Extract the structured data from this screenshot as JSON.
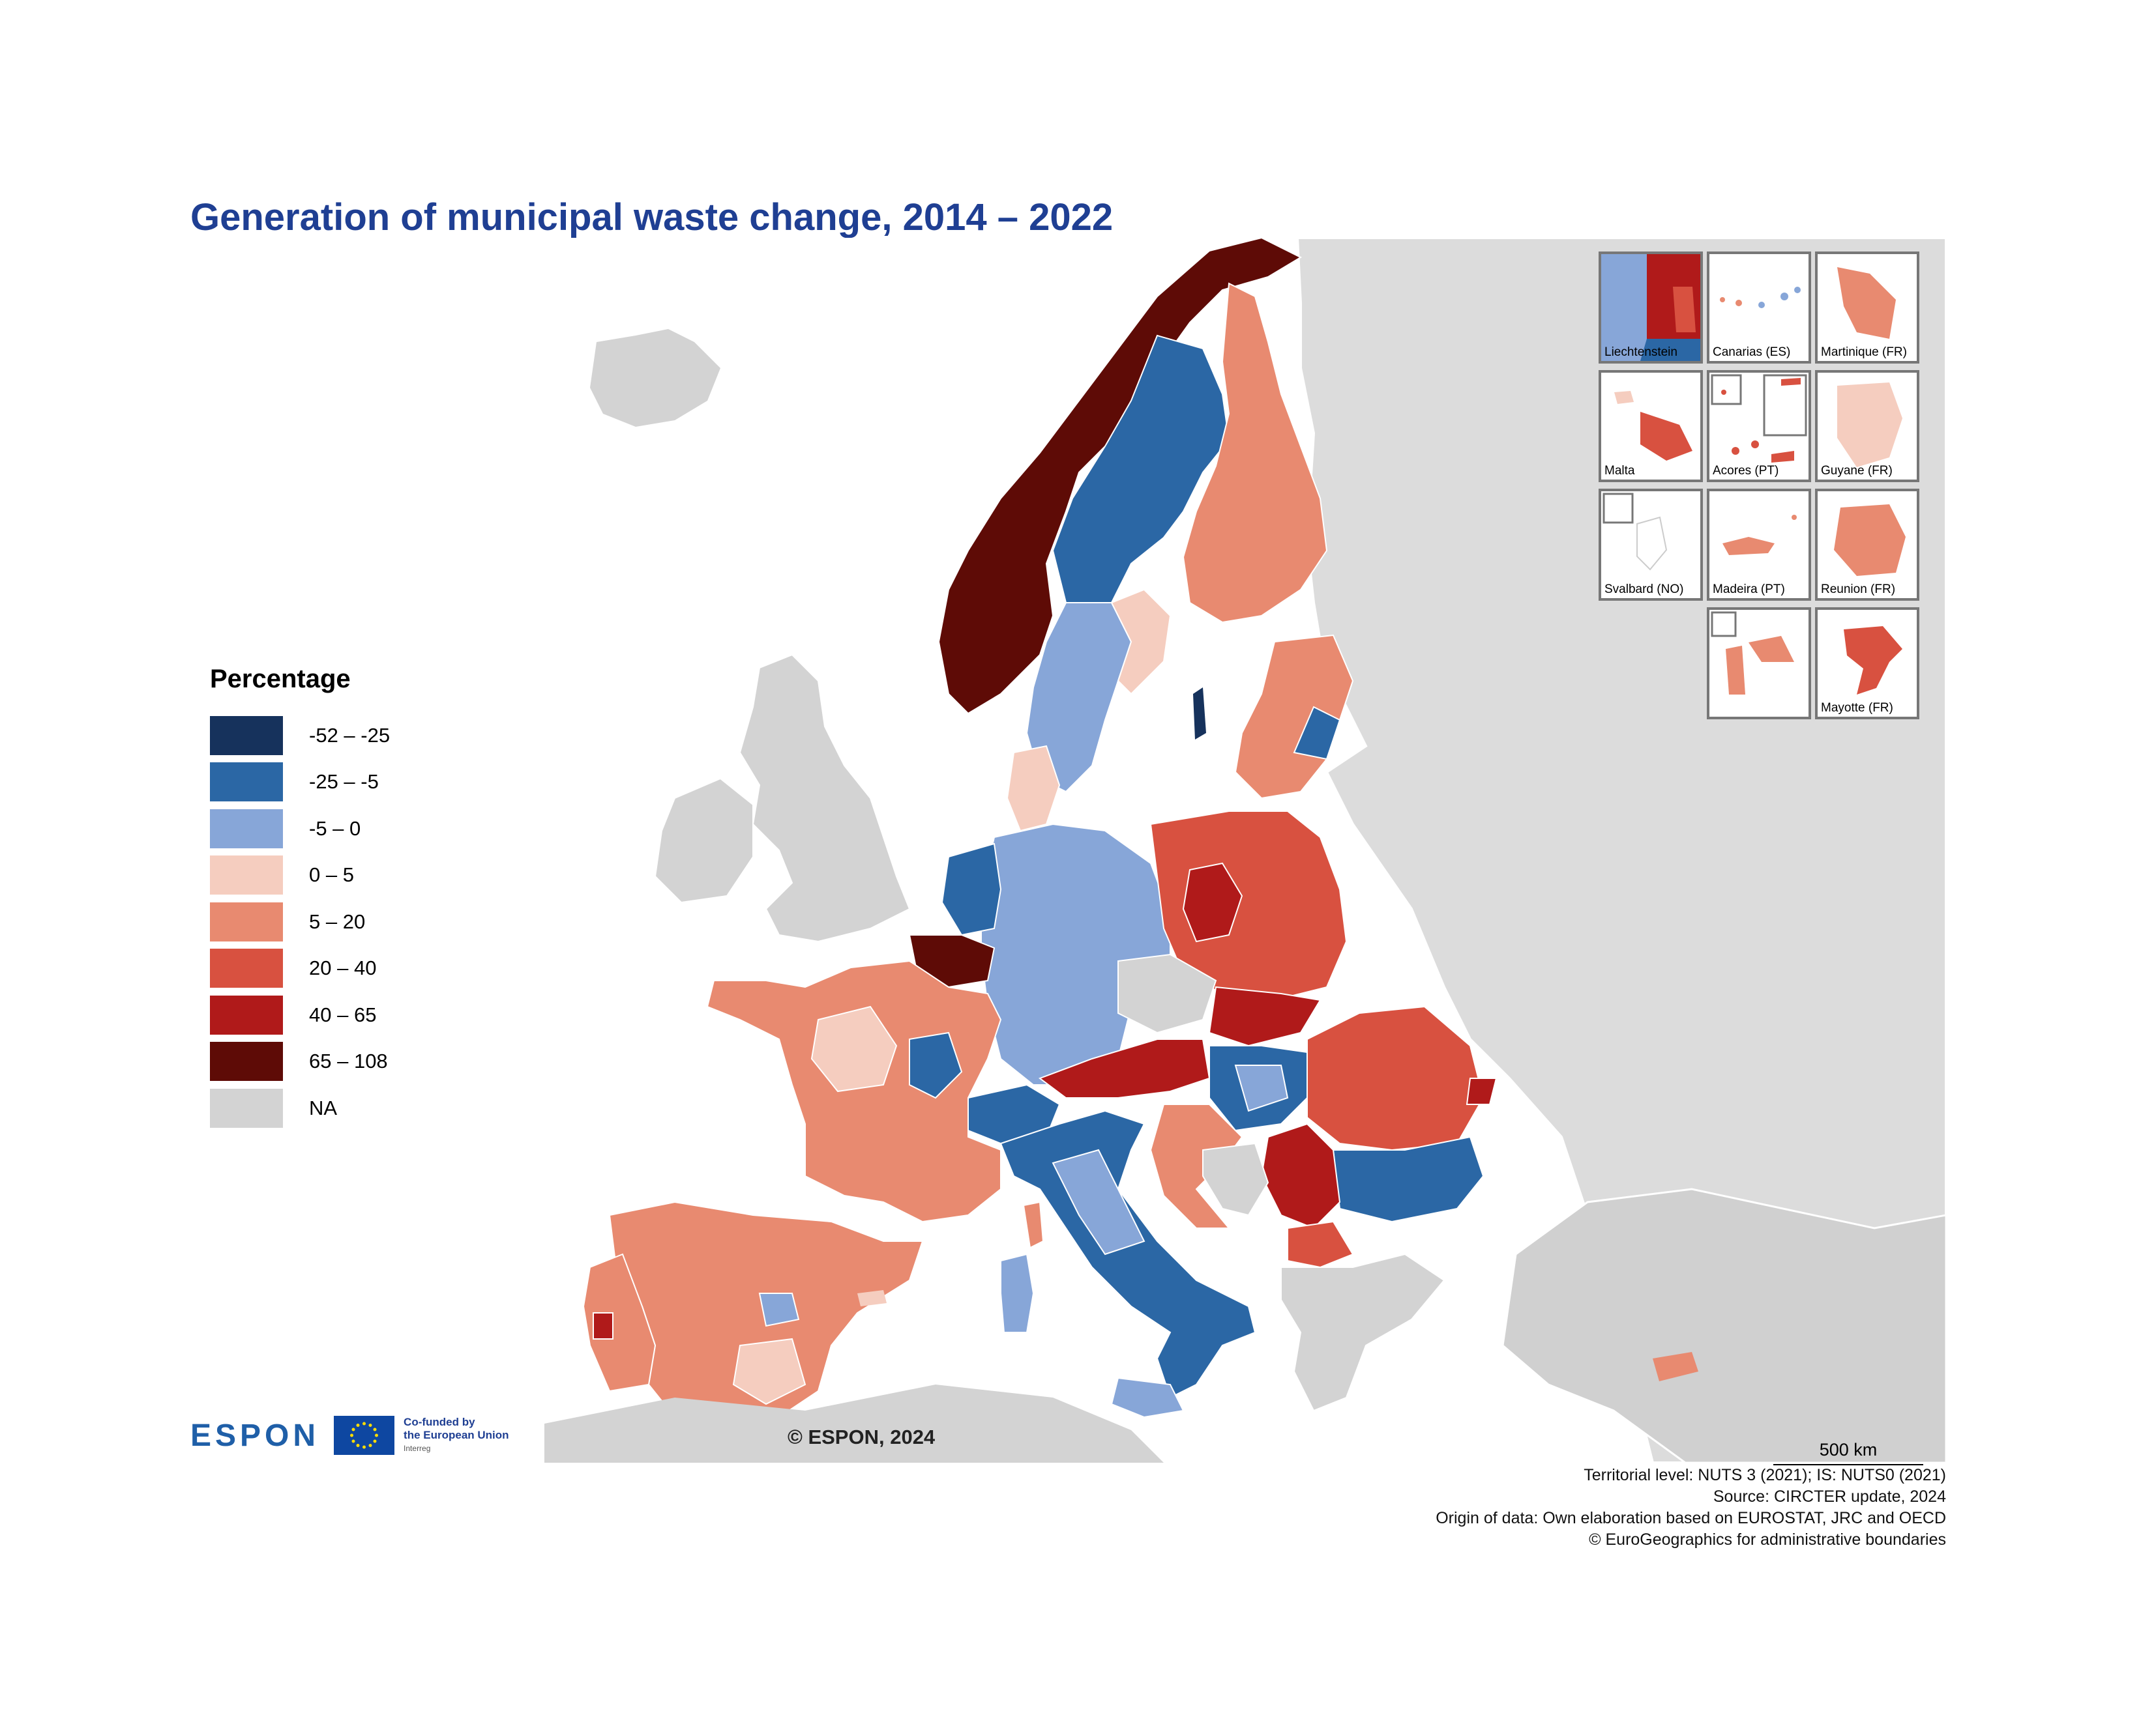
{
  "map": {
    "title": "Generation of municipal waste change, 2014 – 2022",
    "legend": {
      "title": "Percentage",
      "classes": [
        {
          "label": "-52 – -25",
          "color": "#16325c"
        },
        {
          "label": "-25 – -5",
          "color": "#2b67a5"
        },
        {
          "label": "-5 – 0",
          "color": "#87a6d8"
        },
        {
          "label": "0 – 5",
          "color": "#f5cdbf"
        },
        {
          "label": "5 – 20",
          "color": "#e88a70"
        },
        {
          "label": "20 – 40",
          "color": "#d85140"
        },
        {
          "label": "40 – 65",
          "color": "#b01a1a"
        },
        {
          "label": "65 – 108",
          "color": "#5e0b06"
        },
        {
          "label": "NA",
          "color": "#d3d3d3"
        }
      ]
    },
    "insets": [
      {
        "label": "Liechtenstein"
      },
      {
        "label": "Canarias (ES)"
      },
      {
        "label": "Martinique (FR)"
      },
      {
        "label": "Malta"
      },
      {
        "label": "Acores (PT)"
      },
      {
        "label": "Guyane (FR)"
      },
      {
        "label": "Svalbard (NO)"
      },
      {
        "label": "Madeira (PT)"
      },
      {
        "label": "Reunion (FR)"
      },
      {
        "label": "Mayotte (FR)"
      }
    ],
    "scale": "500 km",
    "copyright": "© ESPON, 2024",
    "footer": {
      "line1": "Territorial level: NUTS 3 (2021); IS: NUTS0 (2021)",
      "line2": "Source: CIRCTER update, 2024",
      "line3": "Origin of data: Own elaboration based on EUROSTAT, JRC and OECD",
      "line4": "© EuroGeographics for administrative boundaries"
    },
    "logo": {
      "espon": "ESPON",
      "eu_line1": "Co-funded by",
      "eu_line2": "the European Union",
      "eu_line3": "Interreg"
    },
    "regions": [
      {
        "name": "Norway",
        "class": "65 – 108"
      },
      {
        "name": "Sweden north",
        "class": "-25 – -5"
      },
      {
        "name": "Sweden south",
        "class": "-5 – 0"
      },
      {
        "name": "Finland",
        "class": "5 – 20"
      },
      {
        "name": "Baltics",
        "class": "5 – 20"
      },
      {
        "name": "Poland",
        "class": "20 – 40"
      },
      {
        "name": "Czechia",
        "class": "NA"
      },
      {
        "name": "Slovakia",
        "class": "40 – 65"
      },
      {
        "name": "Austria",
        "class": "40 – 65"
      },
      {
        "name": "Hungary",
        "class": "-25 – -5"
      },
      {
        "name": "Romania",
        "class": "20 – 40"
      },
      {
        "name": "Bulgaria",
        "class": "-25 – -5"
      },
      {
        "name": "Serbia",
        "class": "40 – 65"
      },
      {
        "name": "Greece",
        "class": "NA"
      },
      {
        "name": "Turkey",
        "class": "NA"
      },
      {
        "name": "Germany",
        "class": "-5 – 0"
      },
      {
        "name": "Netherlands",
        "class": "-25 – -5"
      },
      {
        "name": "Belgium",
        "class": "65 – 108"
      },
      {
        "name": "France",
        "class": "5 – 20"
      },
      {
        "name": "Switzerland",
        "class": "-25 – -5"
      },
      {
        "name": "Italy",
        "class": "-25 – -5"
      },
      {
        "name": "Iberia",
        "class": "5 – 20"
      },
      {
        "name": "Denmark",
        "class": "0 – 5"
      },
      {
        "name": "United Kingdom",
        "class": "NA"
      },
      {
        "name": "Ireland",
        "class": "NA"
      },
      {
        "name": "Iceland",
        "class": "NA"
      },
      {
        "name": "Cyprus",
        "class": "5 – 20"
      }
    ]
  }
}
